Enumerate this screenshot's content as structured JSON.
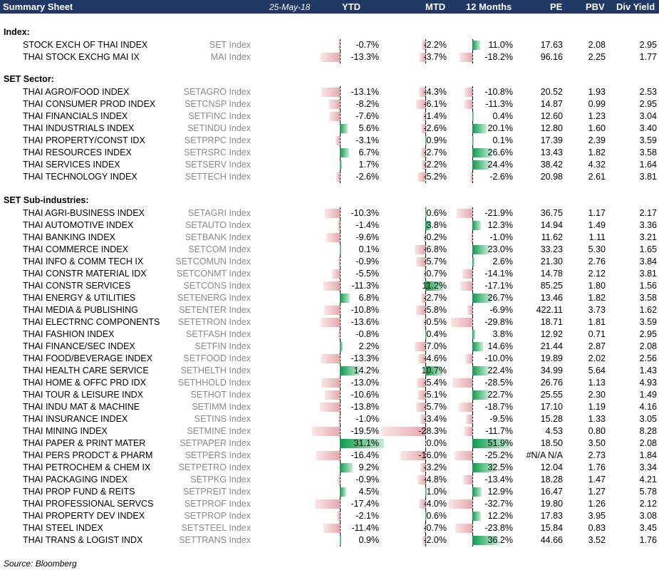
{
  "header": {
    "title": "Summary Sheet",
    "date": "25-May-18",
    "col_ytd": "YTD",
    "col_mtd": "MTD",
    "col_12m": "12 Months",
    "col_pe": "PE",
    "col_pbv": "PBV",
    "col_div": "Div Yield"
  },
  "sections": [
    {
      "title": "Index:",
      "rows": [
        {
          "name": "STOCK EXCH OF THAI INDEX",
          "ticker": "SET Index",
          "ytd": -0.7,
          "mtd": -2.2,
          "m12": 11.0,
          "ytd_text": "-0.7%",
          "mtd_text": "-2.2%",
          "m12_text": "11.0%",
          "pe": "17.63",
          "pbv": "2.08",
          "div": "2.95"
        },
        {
          "name": "THAI STOCK EXCHG MAI IX",
          "ticker": "MAI Index",
          "ytd": -13.3,
          "mtd": -3.7,
          "m12": -18.2,
          "ytd_text": "-13.3%",
          "mtd_text": "-3.7%",
          "m12_text": "-18.2%",
          "pe": "96.16",
          "pbv": "2.25",
          "div": "1.77"
        }
      ]
    },
    {
      "title": "SET Sector:",
      "rows": [
        {
          "name": "THAI AGRO/FOOD INDEX",
          "ticker": "SETAGRO Index",
          "ytd": -13.1,
          "mtd": -4.3,
          "m12": -10.8,
          "ytd_text": "-13.1%",
          "mtd_text": "-4.3%",
          "m12_text": "-10.8%",
          "pe": "20.52",
          "pbv": "1.93",
          "div": "2.53"
        },
        {
          "name": "THAI CONSUMER PROD INDEX",
          "ticker": "SETCNSP Index",
          "ytd": -8.2,
          "mtd": -6.1,
          "m12": -11.3,
          "ytd_text": "-8.2%",
          "mtd_text": "-6.1%",
          "m12_text": "-11.3%",
          "pe": "14.87",
          "pbv": "0.99",
          "div": "2.95"
        },
        {
          "name": "THAI FINANCIALS INDEX",
          "ticker": "SETFINC Index",
          "ytd": -7.6,
          "mtd": -1.4,
          "m12": 0.4,
          "ytd_text": "-7.6%",
          "mtd_text": "-1.4%",
          "m12_text": "0.4%",
          "pe": "12.60",
          "pbv": "1.23",
          "div": "3.04"
        },
        {
          "name": "THAI INDUSTRIALS INDEX",
          "ticker": "SETINDU Index",
          "ytd": 5.6,
          "mtd": -2.6,
          "m12": 20.1,
          "ytd_text": "5.6%",
          "mtd_text": "-2.6%",
          "m12_text": "20.1%",
          "pe": "12.80",
          "pbv": "1.60",
          "div": "3.40"
        },
        {
          "name": "THAI PROPERTY/CONST IDX",
          "ticker": "SETPRPC Index",
          "ytd": -3.1,
          "mtd": 0.9,
          "m12": 0.1,
          "ytd_text": "-3.1%",
          "mtd_text": "0.9%",
          "m12_text": "0.1%",
          "pe": "17.39",
          "pbv": "2.39",
          "div": "3.59"
        },
        {
          "name": "THAI RESOURCES INDEX",
          "ticker": "SETRSRC Index",
          "ytd": 6.7,
          "mtd": -2.7,
          "m12": 26.6,
          "ytd_text": "6.7%",
          "mtd_text": "-2.7%",
          "m12_text": "26.6%",
          "pe": "13.43",
          "pbv": "1.82",
          "div": "3.58"
        },
        {
          "name": "THAI SERVICES INDEX",
          "ticker": "SETSERV Index",
          "ytd": 1.7,
          "mtd": -2.2,
          "m12": 24.4,
          "ytd_text": "1.7%",
          "mtd_text": "-2.2%",
          "m12_text": "24.4%",
          "pe": "38.42",
          "pbv": "4.32",
          "div": "1.64"
        },
        {
          "name": "THAI TECHNOLOGY INDEX",
          "ticker": "SETTECH Index",
          "ytd": -2.6,
          "mtd": -5.2,
          "m12": -2.6,
          "ytd_text": "-2.6%",
          "mtd_text": "-5.2%",
          "m12_text": "-2.6%",
          "pe": "20.98",
          "pbv": "2.61",
          "div": "3.81"
        }
      ]
    },
    {
      "title": "SET Sub-industries:",
      "rows": [
        {
          "name": "THAI AGRI-BUSINESS INDEX",
          "ticker": "SETAGRI Index",
          "ytd": -10.3,
          "mtd": 0.6,
          "m12": -21.9,
          "ytd_text": "-10.3%",
          "mtd_text": "0.6%",
          "m12_text": "-21.9%",
          "pe": "36.75",
          "pbv": "1.17",
          "div": "2.17"
        },
        {
          "name": "THAI AUTOMOTIVE INDEX",
          "ticker": "SETAUTO Index",
          "ytd": -1.4,
          "mtd": 3.8,
          "m12": 12.3,
          "ytd_text": "-1.4%",
          "mtd_text": "3.8%",
          "m12_text": "12.3%",
          "pe": "14.94",
          "pbv": "1.49",
          "div": "3.36"
        },
        {
          "name": "THAI BANKING INDEX",
          "ticker": "SETBANK Index",
          "ytd": -9.6,
          "mtd": -0.2,
          "m12": -1.0,
          "ytd_text": "-9.6%",
          "mtd_text": "-0.2%",
          "m12_text": "-1.0%",
          "pe": "11.62",
          "pbv": "1.11",
          "div": "3.21"
        },
        {
          "name": "THAI COMMERCE INDEX",
          "ticker": "SETCOM Index",
          "ytd": 0.1,
          "mtd": -6.8,
          "m12": 23.0,
          "ytd_text": "0.1%",
          "mtd_text": "-6.8%",
          "m12_text": "23.0%",
          "pe": "33.23",
          "pbv": "5.30",
          "div": "1.65"
        },
        {
          "name": "THAI INFO & COMM TECH IX",
          "ticker": "SETCOMUN Index",
          "ytd": -0.9,
          "mtd": -5.7,
          "m12": 2.6,
          "ytd_text": "-0.9%",
          "mtd_text": "-5.7%",
          "m12_text": "2.6%",
          "pe": "21.30",
          "pbv": "2.76",
          "div": "3.84"
        },
        {
          "name": "THAI CONSTR MATERIAL IDX",
          "ticker": "SETCONMT Index",
          "ytd": -5.5,
          "mtd": -0.7,
          "m12": -14.1,
          "ytd_text": "-5.5%",
          "mtd_text": "-0.7%",
          "m12_text": "-14.1%",
          "pe": "14.78",
          "pbv": "2.12",
          "div": "3.81"
        },
        {
          "name": "THAI CONSTR SERVICES",
          "ticker": "SETCONS Index",
          "ytd": -11.3,
          "mtd": 11.2,
          "m12": -17.1,
          "ytd_text": "-11.3%",
          "mtd_text": "11.2%",
          "m12_text": "-17.1%",
          "pe": "85.25",
          "pbv": "1.80",
          "div": "1.56"
        },
        {
          "name": "THAI ENERGY & UTILITIES",
          "ticker": "SETENERG Index",
          "ytd": 6.8,
          "mtd": -2.7,
          "m12": 26.7,
          "ytd_text": "6.8%",
          "mtd_text": "-2.7%",
          "m12_text": "26.7%",
          "pe": "13.46",
          "pbv": "1.82",
          "div": "3.58"
        },
        {
          "name": "THAI MEDIA & PUBLISHING",
          "ticker": "SETENTER Index",
          "ytd": -10.8,
          "mtd": -5.8,
          "m12": -6.9,
          "ytd_text": "-10.8%",
          "mtd_text": "-5.8%",
          "m12_text": "-6.9%",
          "pe": "422.11",
          "pbv": "3.73",
          "div": "1.62"
        },
        {
          "name": "THAI ELECTRNC COMPONENTS",
          "ticker": "SETETRON Index",
          "ytd": -13.6,
          "mtd": -0.5,
          "m12": -29.8,
          "ytd_text": "-13.6%",
          "mtd_text": "-0.5%",
          "m12_text": "-29.8%",
          "pe": "18.71",
          "pbv": "1.81",
          "div": "3.59"
        },
        {
          "name": "THAI FASHION INDEX",
          "ticker": "SETFASH Index",
          "ytd": -0.8,
          "mtd": 0.4,
          "m12": 3.8,
          "ytd_text": "-0.8%",
          "mtd_text": "0.4%",
          "m12_text": "3.8%",
          "pe": "12.92",
          "pbv": "0.71",
          "div": "2.95"
        },
        {
          "name": "THAI FINANCE/SEC INDEX",
          "ticker": "SETFIN Index",
          "ytd": 2.2,
          "mtd": -7.0,
          "m12": 14.6,
          "ytd_text": "2.2%",
          "mtd_text": "-7.0%",
          "m12_text": "14.6%",
          "pe": "21.44",
          "pbv": "2.87",
          "div": "2.08"
        },
        {
          "name": "THAI FOOD/BEVERAGE INDEX",
          "ticker": "SETFOOD Index",
          "ytd": -13.3,
          "mtd": -4.6,
          "m12": -10.0,
          "ytd_text": "-13.3%",
          "mtd_text": "-4.6%",
          "m12_text": "-10.0%",
          "pe": "19.89",
          "pbv": "2.02",
          "div": "2.56"
        },
        {
          "name": "THAI HEALTH CARE SERVICE",
          "ticker": "SETHELTH Index",
          "ytd": 14.2,
          "mtd": 10.7,
          "m12": 22.4,
          "ytd_text": "14.2%",
          "mtd_text": "10.7%",
          "m12_text": "22.4%",
          "pe": "34.99",
          "pbv": "5.64",
          "div": "1.43"
        },
        {
          "name": "THAI HOME & OFFC PRD IDX",
          "ticker": "SETHHOLD Index",
          "ytd": -13.0,
          "mtd": -5.4,
          "m12": -28.5,
          "ytd_text": "-13.0%",
          "mtd_text": "-5.4%",
          "m12_text": "-28.5%",
          "pe": "26.76",
          "pbv": "1.13",
          "div": "4.93"
        },
        {
          "name": "THAI TOUR & LEISURE INDX",
          "ticker": "SETHOT Index",
          "ytd": -10.6,
          "mtd": -5.1,
          "m12": 22.7,
          "ytd_text": "-10.6%",
          "mtd_text": "-5.1%",
          "m12_text": "22.7%",
          "pe": "25.55",
          "pbv": "2.30",
          "div": "1.49"
        },
        {
          "name": "THAI INDU MAT & MACHINE",
          "ticker": "SETIMM Index",
          "ytd": -13.8,
          "mtd": -5.7,
          "m12": -18.7,
          "ytd_text": "-13.8%",
          "mtd_text": "-5.7%",
          "m12_text": "-18.7%",
          "pe": "17.10",
          "pbv": "1.19",
          "div": "4.16"
        },
        {
          "name": "THAI INSURANCE INDEX",
          "ticker": "SETINS Index",
          "ytd": -1.0,
          "mtd": -3.4,
          "m12": -9.5,
          "ytd_text": "-1.0%",
          "mtd_text": "-3.4%",
          "m12_text": "-9.5%",
          "pe": "15.28",
          "pbv": "1.33",
          "div": "3.05"
        },
        {
          "name": "THAI MINING INDEX",
          "ticker": "SETMINE Index",
          "ytd": -19.5,
          "mtd": -28.3,
          "m12": -11.7,
          "ytd_text": "-19.5%",
          "mtd_text": "-28.3%",
          "m12_text": "-11.7%",
          "pe": "4.53",
          "pbv": "0.80",
          "div": "8.28"
        },
        {
          "name": "THAI PAPER & PRINT MATER",
          "ticker": "SETPAPER Index",
          "ytd": 31.1,
          "mtd": 0.0,
          "m12": 51.9,
          "ytd_text": "31.1%",
          "mtd_text": "0.0%",
          "m12_text": "51.9%",
          "pe": "18.50",
          "pbv": "3.50",
          "div": "2.08"
        },
        {
          "name": "THAI PERS PRODCT & PHARM",
          "ticker": "SETPERS Index",
          "ytd": -16.4,
          "mtd": -16.0,
          "m12": -25.2,
          "ytd_text": "-16.4%",
          "mtd_text": "-16.0%",
          "m12_text": "-25.2%",
          "pe": "#N/A N/A",
          "pbv": "2.73",
          "div": "1.84"
        },
        {
          "name": "THAI PETROCHEM & CHEM IX",
          "ticker": "SETPETRO Index",
          "ytd": 9.2,
          "mtd": -3.2,
          "m12": 32.5,
          "ytd_text": "9.2%",
          "mtd_text": "-3.2%",
          "m12_text": "32.5%",
          "pe": "12.04",
          "pbv": "1.76",
          "div": "3.34"
        },
        {
          "name": "THAI PACKAGING INDEX",
          "ticker": "SETPKG Index",
          "ytd": -0.9,
          "mtd": -4.8,
          "m12": -13.4,
          "ytd_text": "-0.9%",
          "mtd_text": "-4.8%",
          "m12_text": "-13.4%",
          "pe": "18.28",
          "pbv": "1.47",
          "div": "4.21"
        },
        {
          "name": "THAI PROP FUND & REITS",
          "ticker": "SETPREIT Index",
          "ytd": 4.5,
          "mtd": 1.0,
          "m12": 12.9,
          "ytd_text": "4.5%",
          "mtd_text": "1.0%",
          "m12_text": "12.9%",
          "pe": "16.47",
          "pbv": "1.27",
          "div": "5.78"
        },
        {
          "name": "THAI PROFESSIONAL SERVCS",
          "ticker": "SETPROF Index",
          "ytd": -17.4,
          "mtd": -4.0,
          "m12": -32.7,
          "ytd_text": "-17.4%",
          "mtd_text": "-4.0%",
          "m12_text": "-32.7%",
          "pe": "19.80",
          "pbv": "1.26",
          "div": "2.12"
        },
        {
          "name": "THAI PROPERTY DEV INDEX",
          "ticker": "SETPROP Index",
          "ytd": -2.1,
          "mtd": 0.6,
          "m12": 12.2,
          "ytd_text": "-2.1%",
          "mtd_text": "0.6%",
          "m12_text": "12.2%",
          "pe": "17.83",
          "pbv": "3.95",
          "div": "3.08"
        },
        {
          "name": "THAI STEEL INDEX",
          "ticker": "SETSTEEL Index",
          "ytd": -11.4,
          "mtd": -0.7,
          "m12": -23.8,
          "ytd_text": "-11.4%",
          "mtd_text": "-0.7%",
          "m12_text": "-23.8%",
          "pe": "15.84",
          "pbv": "0.83",
          "div": "3.45"
        },
        {
          "name": "THAI TRANS & LOGIST INDX",
          "ticker": "SETTRANS Index",
          "ytd": 0.9,
          "mtd": -2.0,
          "m12": 36.2,
          "ytd_text": "0.9%",
          "mtd_text": "-2.0%",
          "m12_text": "36.2%",
          "pe": "44.66",
          "pbv": "3.52",
          "div": "1.76"
        }
      ]
    }
  ],
  "source": "Source: Bloomberg",
  "colors": {
    "header_bg": "#1f3864",
    "positive": "#0a9c4a",
    "negative": "#e6a9ad"
  }
}
